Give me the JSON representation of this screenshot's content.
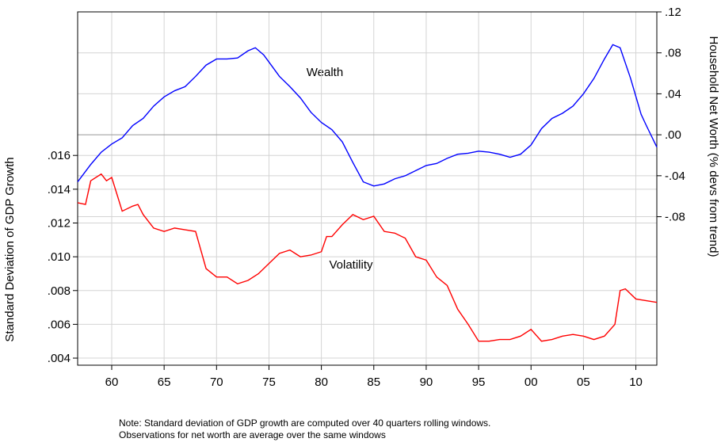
{
  "chart_data": {
    "type": "line",
    "xlim": [
      1956.75,
      2012
    ],
    "xticks": [
      {
        "value": 1960,
        "label": "60"
      },
      {
        "value": 1965,
        "label": "65"
      },
      {
        "value": 1970,
        "label": "70"
      },
      {
        "value": 1975,
        "label": "75"
      },
      {
        "value": 1980,
        "label": "80"
      },
      {
        "value": 1985,
        "label": "85"
      },
      {
        "value": 1990,
        "label": "90"
      },
      {
        "value": 1995,
        "label": "95"
      },
      {
        "value": 2000,
        "label": "00"
      },
      {
        "value": 2005,
        "label": "05"
      },
      {
        "value": 2010,
        "label": "10"
      }
    ],
    "ylim": [
      0.00358,
      0.0245
    ],
    "yticks": [
      {
        "value": 0.004,
        "label": ".004"
      },
      {
        "value": 0.006,
        "label": ".006"
      },
      {
        "value": 0.008,
        "label": ".008"
      },
      {
        "value": 0.01,
        "label": ".010"
      },
      {
        "value": 0.012,
        "label": ".012"
      },
      {
        "value": 0.014,
        "label": ".014"
      },
      {
        "value": 0.016,
        "label": ".016"
      }
    ],
    "y2lim": [
      -0.225,
      0.12
    ],
    "y2ticks": [
      {
        "value": 0.12,
        "label": ".12"
      },
      {
        "value": 0.08,
        "label": ".08"
      },
      {
        "value": 0.04,
        "label": ".04"
      },
      {
        "value": 0,
        "label": ".00"
      },
      {
        "value": -0.04,
        "label": "-.04"
      },
      {
        "value": -0.08,
        "label": "-.08"
      }
    ],
    "ylabel": "Standard Deviation of GDP Growth",
    "y2label": "Household Net Worth (% devs from trend)",
    "grid": true,
    "annotations": [
      "Wealth",
      "Volatility"
    ],
    "note": [
      "Note: Standard deviation of GDP growth are computed over 40 quarters rolling windows.",
      "Observations for net worth are average over the same windows"
    ],
    "series": [
      {
        "name": "Wealth",
        "color": "#0000ff",
        "axis": "y2",
        "x": [
          1956.75,
          1958,
          1959,
          1960,
          1961,
          1962,
          1963,
          1964,
          1965,
          1966,
          1967,
          1968,
          1969,
          1970,
          1971,
          1972,
          1973,
          1973.7,
          1974.5,
          1975,
          1976,
          1977,
          1978,
          1979,
          1980,
          1981,
          1982,
          1983,
          1984,
          1985,
          1986,
          1987,
          1988,
          1989,
          1990,
          1991,
          1992,
          1993,
          1994,
          1995,
          1996,
          1997,
          1998,
          1999,
          2000,
          2001,
          2002,
          2003,
          2004,
          2005,
          2006,
          2007,
          2007.8,
          2008.5,
          2009.5,
          2010.5,
          2011,
          2012
        ],
        "values": [
          -0.046,
          -0.029,
          -0.017,
          -0.009,
          -0.003,
          0.009,
          0.016,
          0.028,
          0.037,
          0.043,
          0.047,
          0.057,
          0.068,
          0.074,
          0.074,
          0.075,
          0.082,
          0.085,
          0.078,
          0.071,
          0.057,
          0.047,
          0.036,
          0.022,
          0.012,
          0.005,
          -0.007,
          -0.027,
          -0.046,
          -0.05,
          -0.048,
          -0.043,
          -0.04,
          -0.035,
          -0.03,
          -0.028,
          -0.023,
          -0.019,
          -0.018,
          -0.016,
          -0.017,
          -0.019,
          -0.022,
          -0.019,
          -0.01,
          0.006,
          0.016,
          0.021,
          0.028,
          0.04,
          0.055,
          0.074,
          0.088,
          0.085,
          0.055,
          0.02,
          0.009,
          -0.012
        ]
      },
      {
        "name": "Volatility",
        "color": "#ff0000",
        "x": [
          1956.75,
          1957.5,
          1958,
          1959,
          1959.5,
          1960,
          1960.5,
          1961,
          1962,
          1962.5,
          1963,
          1964,
          1965,
          1966,
          1967,
          1968,
          1969,
          1970,
          1971,
          1972,
          1973,
          1974,
          1975,
          1976,
          1977,
          1978,
          1979,
          1980,
          1980.5,
          1981,
          1982,
          1983,
          1984,
          1985,
          1986,
          1987,
          1988,
          1989,
          1990,
          1991,
          1992,
          1993,
          1994,
          1995,
          1996,
          1997,
          1998,
          1999,
          2000,
          2001,
          2002,
          2003,
          2004,
          2005,
          2006,
          2007,
          2008,
          2008.5,
          2009,
          2010,
          2011,
          2012
        ],
        "values": [
          0.0132,
          0.0131,
          0.0145,
          0.0149,
          0.0145,
          0.0147,
          0.0137,
          0.0127,
          0.013,
          0.0131,
          0.0125,
          0.0117,
          0.0115,
          0.0117,
          0.0116,
          0.0115,
          0.0093,
          0.0088,
          0.0088,
          0.0084,
          0.0086,
          0.009,
          0.0096,
          0.0102,
          0.0104,
          0.01,
          0.0101,
          0.0103,
          0.0112,
          0.0112,
          0.0119,
          0.0125,
          0.0122,
          0.0124,
          0.0115,
          0.0114,
          0.0111,
          0.01,
          0.0098,
          0.0088,
          0.0083,
          0.0069,
          0.006,
          0.005,
          0.005,
          0.0051,
          0.0051,
          0.0053,
          0.0057,
          0.005,
          0.0051,
          0.0053,
          0.0054,
          0.0053,
          0.0051,
          0.0053,
          0.006,
          0.008,
          0.0081,
          0.0075,
          0.0074,
          0.0073
        ]
      }
    ]
  }
}
